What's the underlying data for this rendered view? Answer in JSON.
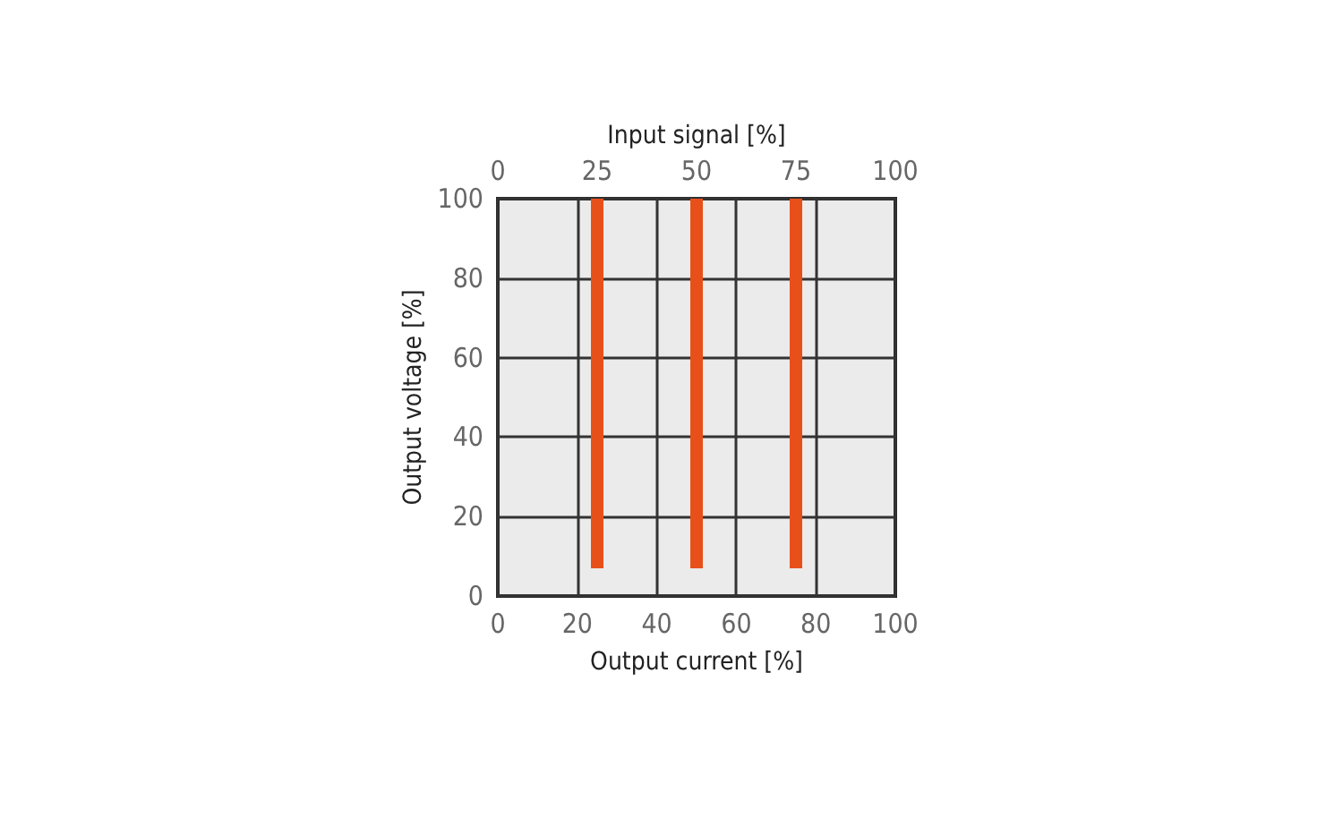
{
  "chart_data": {
    "type": "bar",
    "xlabel": "Output current [%]",
    "ylabel": "Output voltage [%]",
    "x2label": "Input signal [%]",
    "xlim": [
      0,
      100
    ],
    "xticks": [
      0,
      20,
      40,
      60,
      80,
      100
    ],
    "x2lim": [
      0,
      100
    ],
    "x2ticks": [
      0,
      25,
      50,
      75,
      100
    ],
    "ylim": [
      0,
      100
    ],
    "yticks": [
      0,
      20,
      40,
      60,
      80,
      100
    ],
    "grid": true,
    "x": [
      25,
      50,
      75
    ],
    "base": [
      7,
      7,
      7
    ],
    "values": [
      93,
      93,
      93
    ],
    "color": "#e8501a"
  }
}
